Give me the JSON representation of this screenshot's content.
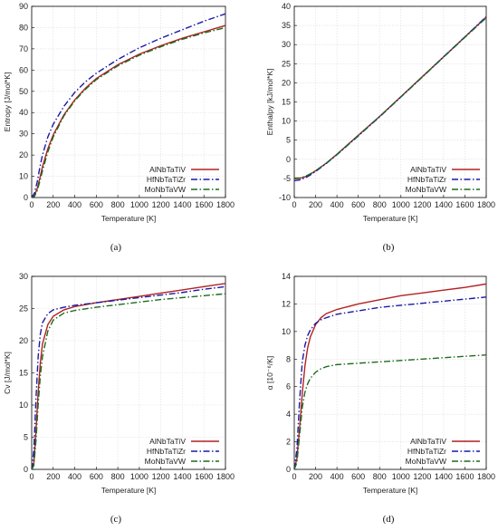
{
  "colors": {
    "AlNbTaTiV": "#b22222",
    "HfNbTaTiZr": "#1a1aa8",
    "MoNbTaVW": "#1e6b1e"
  },
  "chart_data": [
    {
      "type": "line",
      "panel_label": "(a)",
      "xlabel": "Temperature [K]",
      "ylabel": "Entropy [J/mol*K]",
      "xlim": [
        0,
        1800
      ],
      "ylim": [
        0,
        90
      ],
      "xticks": [
        "0",
        "200",
        "400",
        "600",
        "800",
        "1000",
        "1200",
        "1400",
        "1600",
        "1800"
      ],
      "yticks": [
        "0",
        "10",
        "20",
        "30",
        "40",
        "50",
        "60",
        "70",
        "80",
        "90"
      ],
      "grid": true,
      "legend": "bottom-right",
      "series": [
        {
          "name": "AlNbTaTiV",
          "style": "solid",
          "x": [
            0,
            25,
            50,
            75,
            100,
            150,
            200,
            300,
            400,
            500,
            600,
            800,
            1000,
            1200,
            1400,
            1600,
            1800
          ],
          "y": [
            0,
            1,
            4,
            9,
            14.5,
            23,
            29.5,
            39,
            46,
            51.5,
            56,
            62.5,
            67.5,
            71.5,
            75,
            78,
            81
          ]
        },
        {
          "name": "HfNbTaTiZr",
          "style": "dashdot",
          "x": [
            0,
            25,
            50,
            75,
            100,
            150,
            200,
            300,
            400,
            500,
            600,
            800,
            1000,
            1200,
            1400,
            1600,
            1800
          ],
          "y": [
            0,
            2,
            7,
            14,
            20,
            28.5,
            34.5,
            43,
            49.5,
            54.5,
            58.5,
            65,
            70.5,
            75,
            79,
            83,
            86.5
          ]
        },
        {
          "name": "MoNbTaVW",
          "style": "dashdot",
          "x": [
            0,
            25,
            50,
            75,
            100,
            150,
            200,
            300,
            400,
            500,
            600,
            800,
            1000,
            1200,
            1400,
            1600,
            1800
          ],
          "y": [
            0,
            0.5,
            3,
            7.5,
            12.5,
            21.5,
            28.5,
            38.5,
            45.5,
            51,
            55.5,
            62,
            67,
            71,
            74.5,
            77.5,
            80
          ]
        }
      ]
    },
    {
      "type": "line",
      "panel_label": "(b)",
      "xlabel": "Temperature [K]",
      "ylabel": "Enthalpy [kJ/mol*K]",
      "xlim": [
        0,
        1800
      ],
      "ylim": [
        -10,
        40
      ],
      "xticks": [
        "0",
        "200",
        "400",
        "600",
        "800",
        "1000",
        "1200",
        "1400",
        "1600",
        "1800"
      ],
      "yticks": [
        "-10",
        "-5",
        "0",
        "5",
        "10",
        "15",
        "20",
        "25",
        "30",
        "35",
        "40"
      ],
      "grid": true,
      "legend": "bottom-right",
      "series": [
        {
          "name": "AlNbTaTiV",
          "style": "solid",
          "x": [
            0,
            50,
            100,
            150,
            200,
            300,
            400,
            600,
            800,
            1000,
            1200,
            1400,
            1600,
            1800
          ],
          "y": [
            -5.1,
            -5,
            -4.6,
            -3.9,
            -3,
            -1,
            1.3,
            6.3,
            11.2,
            16.4,
            21.6,
            26.8,
            32,
            37.2
          ]
        },
        {
          "name": "HfNbTaTiZr",
          "style": "dashdot",
          "x": [
            0,
            50,
            100,
            150,
            200,
            300,
            400,
            600,
            800,
            1000,
            1200,
            1400,
            1600,
            1800
          ],
          "y": [
            -5.6,
            -5.4,
            -4.9,
            -4.1,
            -3.2,
            -1.1,
            1.2,
            6.1,
            11.1,
            16.3,
            21.5,
            26.8,
            32,
            37.3
          ]
        },
        {
          "name": "MoNbTaVW",
          "style": "dashdot",
          "x": [
            0,
            50,
            100,
            150,
            200,
            300,
            400,
            600,
            800,
            1000,
            1200,
            1400,
            1600,
            1800
          ],
          "y": [
            -4.9,
            -4.9,
            -4.5,
            -3.8,
            -3,
            -1,
            1.3,
            6.2,
            11.2,
            16.3,
            21.5,
            26.7,
            31.9,
            37
          ]
        }
      ]
    },
    {
      "type": "line",
      "panel_label": "(c)",
      "xlabel": "Temperature [K]",
      "ylabel": "Cv [J/mol*K]",
      "xlim": [
        0,
        1800
      ],
      "ylim": [
        0,
        30
      ],
      "xticks": [
        "0",
        "200",
        "400",
        "600",
        "800",
        "1000",
        "1200",
        "1400",
        "1600",
        "1800"
      ],
      "yticks": [
        "0",
        "5",
        "10",
        "15",
        "20",
        "25",
        "30"
      ],
      "grid": true,
      "legend": "bottom-right",
      "series": [
        {
          "name": "AlNbTaTiV",
          "style": "solid",
          "x": [
            0,
            20,
            40,
            60,
            80,
            100,
            150,
            200,
            300,
            400,
            600,
            800,
            1000,
            1200,
            1400,
            1600,
            1800
          ],
          "y": [
            0,
            1,
            6,
            12,
            16.5,
            19.5,
            22.5,
            23.8,
            24.8,
            25.3,
            25.9,
            26.4,
            26.9,
            27.4,
            27.9,
            28.4,
            28.9
          ]
        },
        {
          "name": "HfNbTaTiZr",
          "style": "dashdot",
          "x": [
            0,
            20,
            40,
            60,
            80,
            100,
            150,
            200,
            300,
            400,
            600,
            800,
            1000,
            1200,
            1400,
            1600,
            1800
          ],
          "y": [
            0,
            3,
            11,
            17.5,
            21,
            22.8,
            24.2,
            24.8,
            25.2,
            25.5,
            25.9,
            26.3,
            26.7,
            27.1,
            27.5,
            28,
            28.4
          ]
        },
        {
          "name": "MoNbTaVW",
          "style": "dashdot",
          "x": [
            0,
            20,
            40,
            60,
            80,
            100,
            150,
            200,
            300,
            400,
            600,
            800,
            1000,
            1200,
            1400,
            1600,
            1800
          ],
          "y": [
            0,
            0.6,
            4.5,
            10,
            14.5,
            17.5,
            21.5,
            23.2,
            24.3,
            24.7,
            25.2,
            25.6,
            26,
            26.4,
            26.7,
            27,
            27.3
          ]
        }
      ]
    },
    {
      "type": "line",
      "panel_label": "(d)",
      "xlabel": "Temperature [K]",
      "ylabel": "α [10⁻⁶/K]",
      "xlim": [
        0,
        1800
      ],
      "ylim": [
        0,
        14
      ],
      "xticks": [
        "0",
        "200",
        "400",
        "600",
        "800",
        "1000",
        "1200",
        "1400",
        "1600",
        "1800"
      ],
      "yticks": [
        "0",
        "2",
        "4",
        "6",
        "8",
        "10",
        "12",
        "14"
      ],
      "grid": true,
      "legend": "bottom-right",
      "series": [
        {
          "name": "AlNbTaTiV",
          "style": "solid",
          "x": [
            0,
            25,
            50,
            75,
            100,
            125,
            150,
            200,
            250,
            300,
            400,
            600,
            800,
            1000,
            1200,
            1400,
            1600,
            1800
          ],
          "y": [
            0,
            0.8,
            3,
            5.5,
            7.5,
            8.8,
            9.6,
            10.5,
            11,
            11.3,
            11.6,
            12,
            12.3,
            12.6,
            12.8,
            13,
            13.2,
            13.45
          ]
        },
        {
          "name": "HfNbTaTiZr",
          "style": "dashdot",
          "x": [
            0,
            25,
            50,
            75,
            100,
            125,
            150,
            200,
            250,
            300,
            400,
            600,
            800,
            1000,
            1200,
            1400,
            1600,
            1800
          ],
          "y": [
            0,
            1.5,
            5,
            7.8,
            9,
            9.7,
            10.1,
            10.6,
            10.85,
            11,
            11.25,
            11.5,
            11.75,
            11.9,
            12.05,
            12.2,
            12.35,
            12.5
          ]
        },
        {
          "name": "MoNbTaVW",
          "style": "dashdot",
          "x": [
            0,
            25,
            50,
            75,
            100,
            125,
            150,
            200,
            250,
            300,
            400,
            600,
            800,
            1000,
            1200,
            1400,
            1600,
            1800
          ],
          "y": [
            0,
            0.5,
            2.5,
            4.5,
            5.6,
            6.2,
            6.6,
            7.05,
            7.3,
            7.45,
            7.6,
            7.7,
            7.8,
            7.9,
            8,
            8.1,
            8.2,
            8.3
          ]
        }
      ]
    }
  ]
}
